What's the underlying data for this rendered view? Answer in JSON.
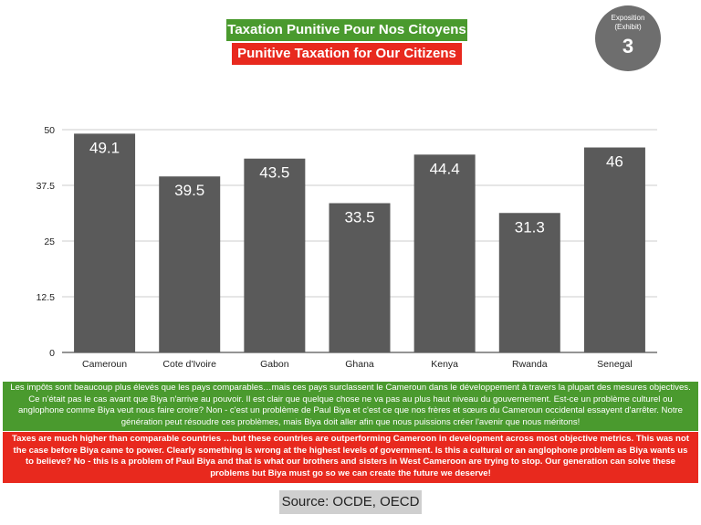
{
  "titles": {
    "french": "Taxation Punitive Pour Nos Citoyens",
    "english": "Punitive Taxation for Our Citizens"
  },
  "exhibit": {
    "line1": "Exposition",
    "line2": "(Exhibit)",
    "number": "3"
  },
  "chart_data": {
    "type": "bar",
    "categories": [
      "Cameroun",
      "Cote d'Ivoire",
      "Gabon",
      "Ghana",
      "Kenya",
      "Rwanda",
      "Senegal"
    ],
    "values": [
      49.1,
      39.5,
      43.5,
      33.5,
      44.4,
      31.3,
      46
    ],
    "value_labels": [
      "49.1",
      "39.5",
      "43.5",
      "33.5",
      "44.4",
      "31.3",
      "46"
    ],
    "ylim": [
      0,
      50
    ],
    "yticks": [
      0,
      12.5,
      25,
      37.5,
      50
    ],
    "ytick_labels": [
      "0",
      "12.5",
      "25",
      "37.5",
      "50"
    ],
    "grid": true,
    "bar_color": "#5a5a5a",
    "grid_color": "#cccccc"
  },
  "text_fr": "Les impôts sont beaucoup plus élevés que les pays comparables…mais ces pays surclassent le Cameroun dans le développement à travers la plupart des mesures objectives. Ce n'était pas le cas avant que Biya n'arrive au pouvoir. Il est clair que quelque chose ne va pas au plus haut niveau du gouvernement. Est-ce un problème culturel ou anglophone comme Biya veut nous faire croire? Non - c'est un problème de Paul Biya et c'est ce que nos frères et sœurs du Cameroun occidental essayent d'arrêter. Notre génération peut résoudre ces problèmes, mais Biya doit aller afin que nous puissions créer l'avenir que nous méritons!",
  "text_en": "Taxes are much higher than comparable countries …but these countries are outperforming Cameroon in development across most objective metrics. This was not the case before Biya came to power. Clearly something is wrong at the highest levels of government. Is this a cultural or an anglophone problem as Biya wants us to believe? No - this is a problem of Paul Biya and that is what our brothers and sisters in West Cameroon are trying to stop. Our generation can solve these problems but Biya must go so we can create the future we deserve!",
  "source": "Source: OCDE, OECD",
  "colors": {
    "green": "#4a9a2e",
    "red": "#e8291e",
    "gray_circle": "#6e6e6e"
  }
}
